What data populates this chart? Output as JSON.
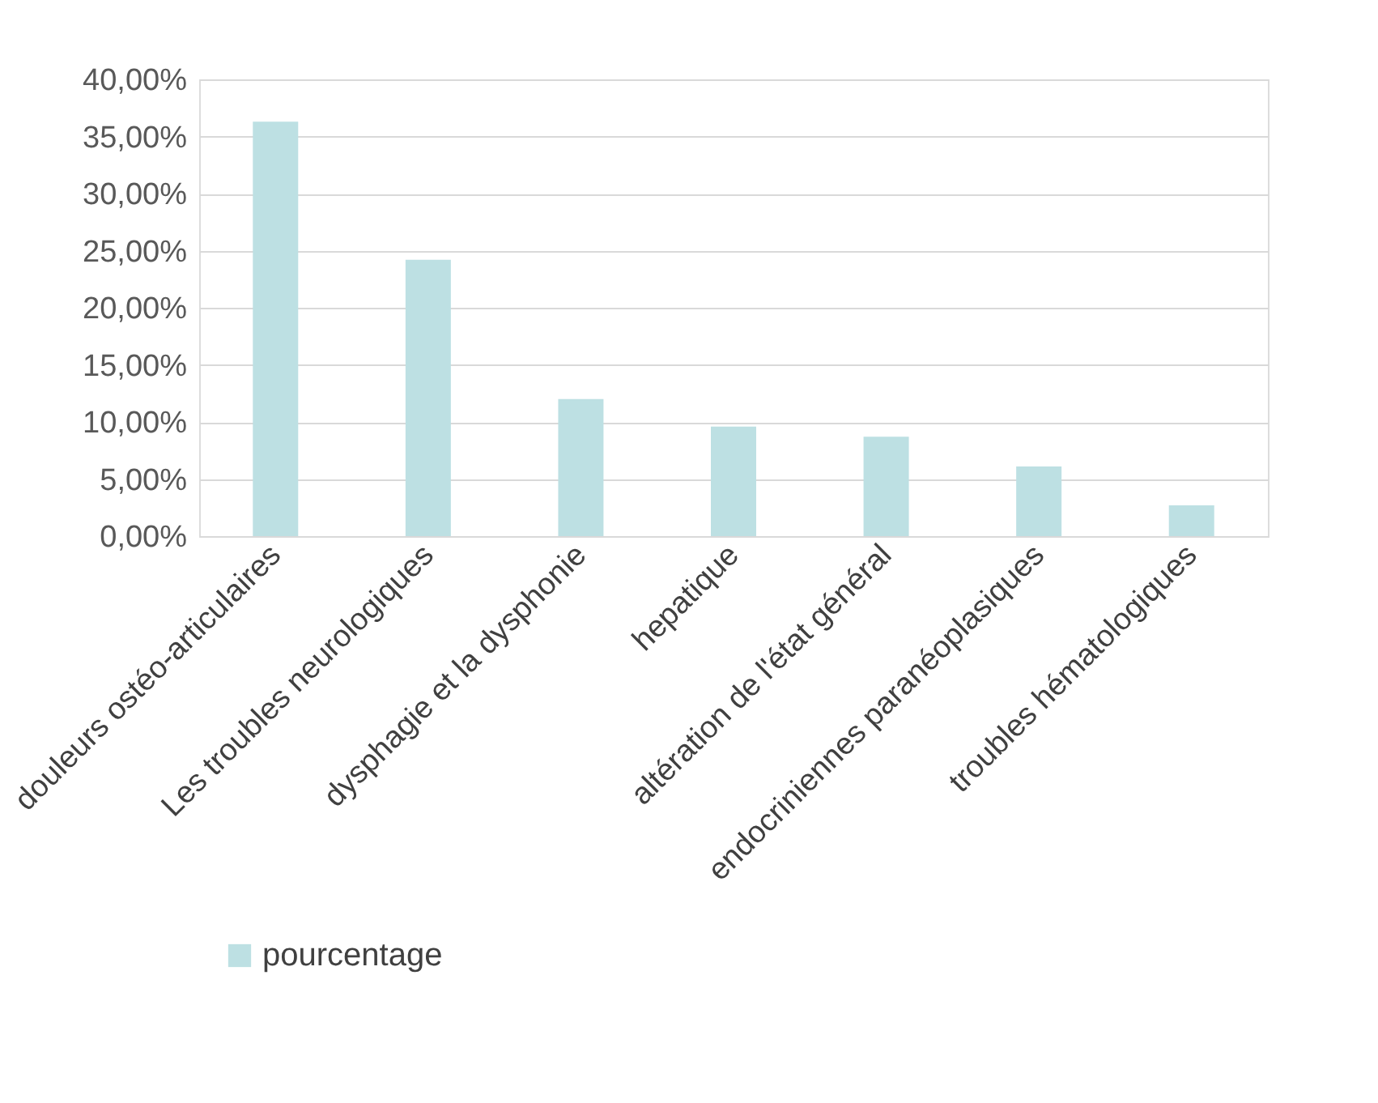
{
  "chart_data": {
    "type": "bar",
    "categories": [
      "douleurs ostéo-articulaires",
      "Les troubles neurologiques",
      "dysphagie et la dysphonie",
      "hepatique",
      "altération de l'état général",
      "endocriniennes paranéoplasiques",
      "troubles hématologiques"
    ],
    "series": [
      {
        "name": "pourcentage",
        "color": "#bde0e3",
        "values": [
          36.3,
          24.2,
          12.0,
          9.6,
          8.7,
          6.1,
          2.7
        ]
      }
    ],
    "ylim": [
      0,
      40
    ],
    "yticks": [
      {
        "value": 0,
        "label": "0,00%"
      },
      {
        "value": 5,
        "label": "5,00%"
      },
      {
        "value": 10,
        "label": "10,00%"
      },
      {
        "value": 15,
        "label": "15,00%"
      },
      {
        "value": 20,
        "label": "20,00%"
      },
      {
        "value": 25,
        "label": "25,00%"
      },
      {
        "value": 30,
        "label": "30,00%"
      },
      {
        "value": 35,
        "label": "35,00%"
      },
      {
        "value": 40,
        "label": "40,00%"
      }
    ],
    "grid": "y",
    "legend": "bottom"
  }
}
